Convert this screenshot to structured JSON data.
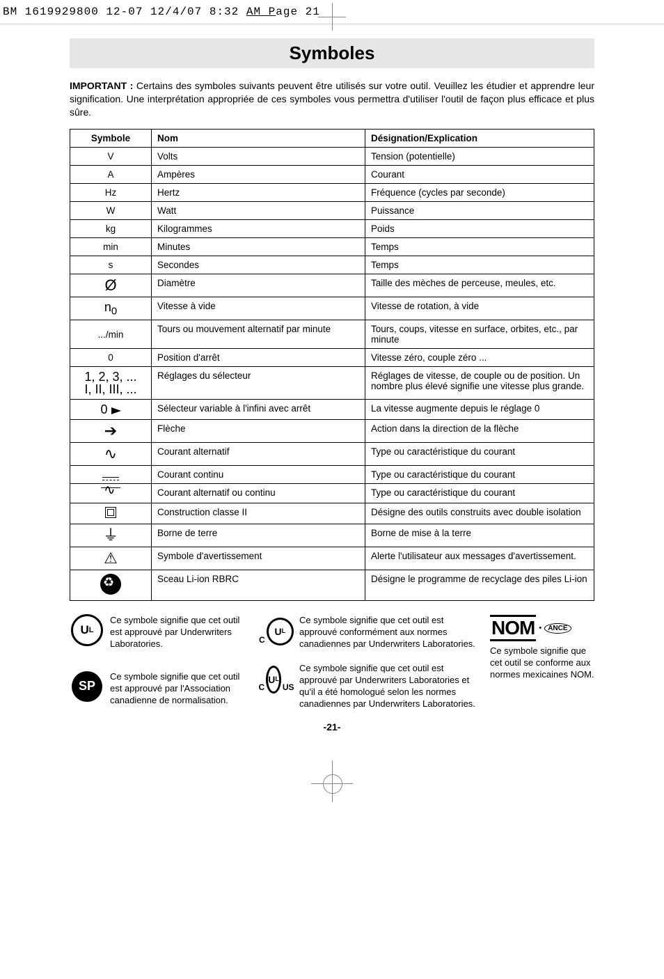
{
  "crop_header": {
    "text_prefix": "BM 1619929800 12-07  12/4/07  8:32 ",
    "text_underlined": "AM  P",
    "text_suffix": "age 21"
  },
  "title": "Symboles",
  "intro": {
    "bold": "IMPORTANT :",
    "rest": " Certains des symboles suivants peuvent être utilisés sur votre outil. Veuillez les étudier et apprendre leur signification. Une interprétation appropriée de ces symboles vous permettra d'utiliser l'outil de façon plus efficace et plus sûre."
  },
  "table": {
    "headers": {
      "c1": "Symbole",
      "c2": "Nom",
      "c3": "Désignation/Explication"
    },
    "rows": [
      {
        "sym_text": "V",
        "nom": "Volts",
        "desc": "Tension (potentielle)"
      },
      {
        "sym_text": "A",
        "nom": "Ampères",
        "desc": "Courant"
      },
      {
        "sym_text": "Hz",
        "nom": "Hertz",
        "desc": "Fréquence (cycles par seconde)"
      },
      {
        "sym_text": "W",
        "nom": "Watt",
        "desc": "Puissance"
      },
      {
        "sym_text": "kg",
        "nom": "Kilogrammes",
        "desc": "Poids"
      },
      {
        "sym_text": "min",
        "nom": "Minutes",
        "desc": "Temps"
      },
      {
        "sym_text": "s",
        "nom": "Secondes",
        "desc": "Temps"
      },
      {
        "sym_html": "Ø",
        "sym_class": "big",
        "nom": "Diamètre",
        "desc": "Taille des mèches de perceuse, meules, etc."
      },
      {
        "sym_html": "n<sub>0</sub>",
        "nom": "Vitesse à vide",
        "desc": "Vitesse de rotation, à vide"
      },
      {
        "sym_text": ".../min",
        "nom": "Tours ou mouvement alternatif par minute",
        "desc": "Tours, coups, vitesse en surface, orbites, etc., par minute"
      },
      {
        "sym_text": "0",
        "nom": "Position d'arrêt",
        "desc": "Vitesse zéro, couple zéro ..."
      },
      {
        "sym_html": "1, 2, 3, ...<br>I, II, III, ...",
        "nom": "Réglages du sélecteur",
        "desc": "Réglages de vitesse, de couple ou de position. Un nombre plus élevé signifie une vitesse plus grande."
      },
      {
        "sym_html": "0 <span style='display:inline-block;width:0;height:0;border-left:14px solid #000;border-top:5px solid transparent;border-bottom:5px solid transparent;vertical-align:middle;'></span>",
        "nom": "Sélecteur variable à l'infini avec arrêt",
        "desc": "La vitesse augmente depuis le réglage 0"
      },
      {
        "sym_html": "➔",
        "sym_class": "big",
        "nom": "Flèche",
        "desc": "Action dans la direction de la flèche"
      },
      {
        "sym_html": "∿",
        "sym_class": "big",
        "nom": "Courant alternatif",
        "desc": "Type ou caractéristique du courant"
      },
      {
        "sym_widget": "dc",
        "nom": "Courant continu",
        "desc": "Type ou caractéristique du courant"
      },
      {
        "sym_widget": "acdc",
        "nom": "Courant alternatif ou continu",
        "desc": "Type ou caractéristique du courant"
      },
      {
        "sym_widget": "class2",
        "nom": "Construction classe II",
        "desc": "Désigne des outils construits avec double isolation"
      },
      {
        "sym_html": "⏚",
        "sym_class": "big",
        "nom": "Borne de terre",
        "desc": "Borne de mise à la terre"
      },
      {
        "sym_html": "⚠",
        "sym_class": "big",
        "nom": "Symbole d'avertissement",
        "desc": "Alerte l'utilisateur aux messages d'avertissement."
      },
      {
        "sym_widget": "rbrc",
        "nom": "Sceau Li-ion RBRC",
        "desc": "Désigne le programme de recyclage des piles Li-ion"
      }
    ]
  },
  "certs": {
    "ul": "Ce symbole signifie que cet outil est approuvé par Underwriters Laboratories.",
    "cul": "Ce symbole signifie que cet outil est approuvé conformément aux normes canadiennes par Underwriters Laboratories.",
    "sp": "Ce symbole signifie que cet outil est approuvé par l'Association canadienne de normalisation.",
    "culus": "Ce symbole signifie que cet outil est approuvé par Underwriters Laboratories et qu'il a été homologué selon les normes canadiennes par Underwriters Laboratories.",
    "nom": "Ce symbole signifie que cet outil se conforme aux normes mexicaines NOM."
  },
  "page_num": "-21-",
  "colors": {
    "title_bg": "#e6e6e6",
    "text": "#000000",
    "bg": "#ffffff"
  }
}
